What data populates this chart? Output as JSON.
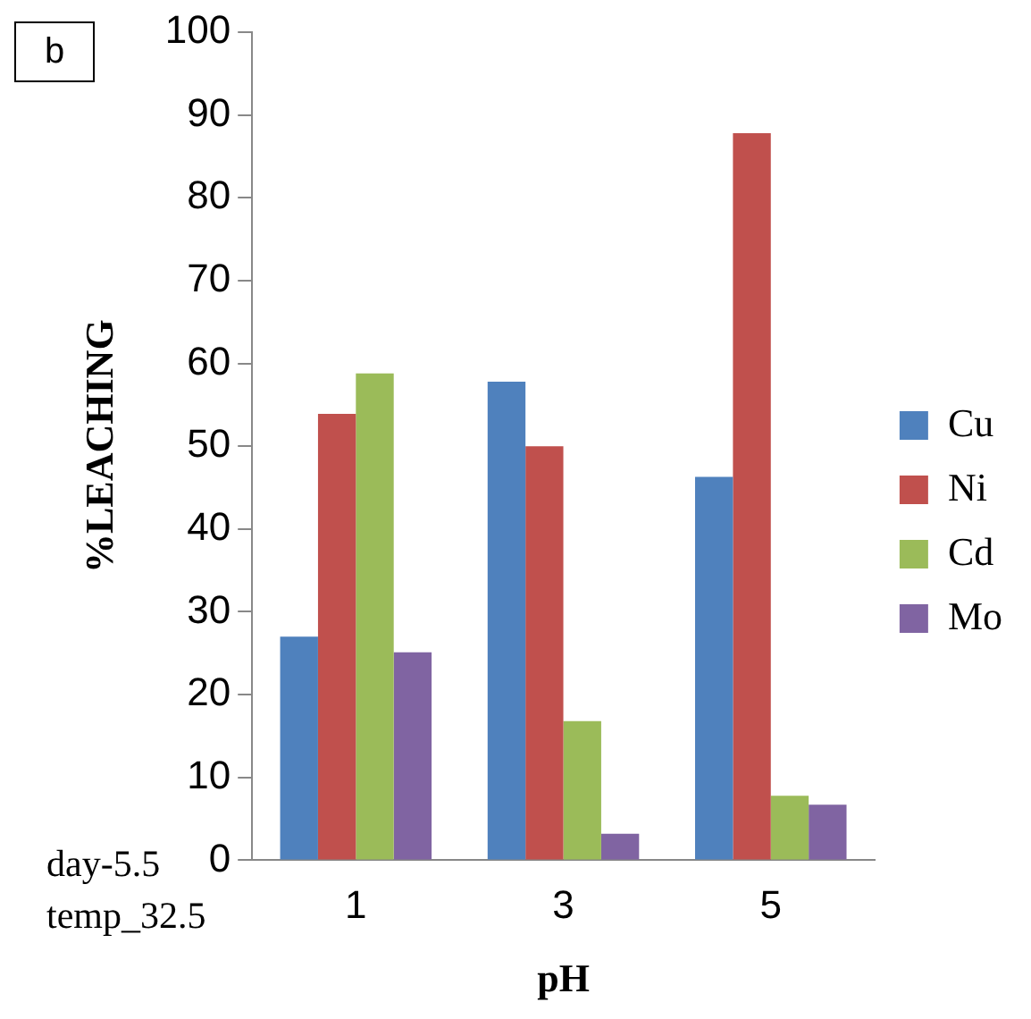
{
  "chart_data": {
    "type": "bar",
    "xlabel": "pH",
    "ylabel": "%LEACHING",
    "categories": [
      "1",
      "3",
      "5"
    ],
    "series": [
      {
        "name": "Cu",
        "color": "#4f81bd",
        "values": [
          27,
          57.8,
          46.3
        ]
      },
      {
        "name": "Ni",
        "color": "#c0504d",
        "values": [
          53.9,
          50,
          87.8
        ]
      },
      {
        "name": "Cd",
        "color": "#9bbb59",
        "values": [
          58.8,
          16.8,
          7.8
        ]
      },
      {
        "name": "Mo",
        "color": "#8064a2",
        "values": [
          25.1,
          3.2,
          6.7
        ]
      }
    ],
    "ylim": [
      0,
      100
    ],
    "yticks": [
      0,
      10,
      20,
      30,
      40,
      50,
      60,
      70,
      80,
      90,
      100
    ],
    "grid": false,
    "legend": "right",
    "annotations": [
      "b",
      "day-5.5",
      "temp_32.5"
    ]
  }
}
